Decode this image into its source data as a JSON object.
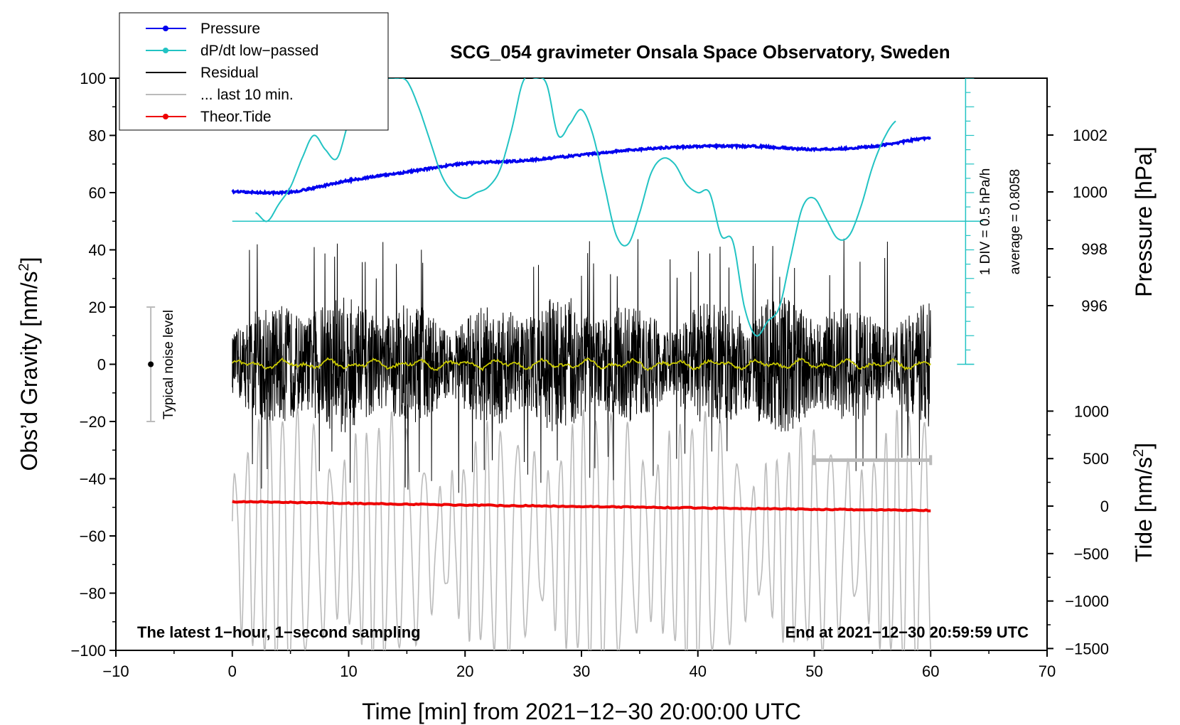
{
  "chart_data": {
    "type": "line",
    "title": "SCG_054 gravimeter Onsala Space Observatory, Sweden",
    "xlabel": "Time [min] from 2021−12−30 20:00:00 UTC",
    "ylabel_left": "Obs’d Gravity [nm/s",
    "ylabel_left_sup": "2",
    "ylabel_left_close": "]",
    "ylabel_pressure": "Pressure [hPa]",
    "ylabel_tide": "Tide [nm/s",
    "ylabel_tide_sup": "2",
    "ylabel_tide_close": "]",
    "xlim": [
      -10,
      70
    ],
    "ylim": [
      -100,
      100
    ],
    "x_ticks": [
      "−10",
      "0",
      "10",
      "20",
      "30",
      "40",
      "50",
      "60",
      "70"
    ],
    "y_ticks": [
      "100",
      "80",
      "60",
      "40",
      "20",
      "0",
      "−20",
      "−40",
      "−60",
      "−80",
      "−100"
    ],
    "pressure_ticks": [
      "1002",
      "1000",
      "998",
      "996"
    ],
    "pressure_tick_values": [
      1002,
      1000,
      998,
      996
    ],
    "tide_ticks": [
      "1000",
      "500",
      "0",
      "−500",
      "−1000",
      "−1500"
    ],
    "tide_tick_values": [
      1000,
      500,
      0,
      -500,
      -1000,
      -1500
    ],
    "note_left": "The latest 1−hour, 1−second sampling",
    "note_right": "End at 2021−12−30 20:59:59 UTC",
    "dpdt_scale_label": "1 DIV = 0.5 hPa/h",
    "dpdt_average_label": "average = 0.8058",
    "noise_label": "Typical noise level",
    "noise_range": [
      -20,
      20
    ],
    "legend": [
      {
        "label": "Pressure",
        "color": "#0000ee",
        "marker": true
      },
      {
        "label": "dP/dt low−passed",
        "color": "#22c3c3",
        "marker": true
      },
      {
        "label": "Residual",
        "color": "#000000",
        "marker": false
      },
      {
        "label": "... last 10 min.",
        "color": "#bbbbbb",
        "marker": false
      },
      {
        "label": "Theor.Tide",
        "color": "#ee0000",
        "marker": true
      }
    ],
    "series": [
      {
        "name": "Pressure",
        "color": "#0000ee",
        "unit": "hPa",
        "x": [
          0,
          5,
          10,
          15,
          20,
          25,
          30,
          35,
          40,
          45,
          50,
          55,
          60
        ],
        "values": [
          1000.0,
          1000.0,
          1000.4,
          1000.7,
          1001.0,
          1001.1,
          1001.3,
          1001.5,
          1001.6,
          1001.6,
          1001.5,
          1001.6,
          1001.9
        ]
      },
      {
        "name": "dP/dt low-passed",
        "color": "#22c3c3",
        "unit": "nm/s2-scaled",
        "x": [
          2,
          3,
          4,
          5,
          6,
          7,
          8,
          9,
          10,
          11,
          12,
          13,
          14,
          15,
          16,
          17,
          18,
          19,
          20,
          21,
          22,
          23,
          24,
          25,
          26,
          27,
          28,
          29,
          30,
          31,
          32,
          33,
          34,
          35,
          36,
          37,
          38,
          39,
          40,
          41,
          42,
          43,
          44,
          45,
          46,
          47,
          48,
          49,
          50,
          51,
          52,
          53,
          54,
          55,
          56,
          57
        ],
        "values": [
          53,
          50,
          56,
          62,
          72,
          80,
          75,
          72,
          85,
          97,
          100,
          100,
          100,
          99,
          90,
          78,
          66,
          60,
          58,
          60,
          62,
          68,
          82,
          99,
          100,
          98,
          80,
          84,
          89,
          80,
          62,
          45,
          42,
          53,
          67,
          72,
          70,
          63,
          60,
          60,
          45,
          43,
          20,
          10,
          15,
          20,
          38,
          55,
          58,
          51,
          44,
          45,
          55,
          69,
          79,
          85
        ]
      },
      {
        "name": "Residual",
        "color": "#000000",
        "unit": "nm/s2",
        "x": [
          0,
          60
        ],
        "amplitude": 20,
        "peak_range": [
          -45,
          47
        ]
      },
      {
        "name": "Residual smoothed",
        "color": "#c8c800",
        "unit": "nm/s2",
        "x": [
          0,
          60
        ],
        "values": [
          0,
          0
        ]
      },
      {
        "name": "... last 10 min.",
        "color": "#bbbbbb",
        "unit": "nm/s2",
        "x": [
          0,
          60
        ],
        "baseline": -62,
        "amplitude_range": [
          -105,
          -35
        ]
      },
      {
        "name": "Theor.Tide",
        "color": "#ee0000",
        "unit": "nm/s2",
        "x": [
          0,
          10,
          20,
          30,
          40,
          50,
          60
        ],
        "values": [
          -48.0,
          -48.6,
          -49.2,
          -49.7,
          -50.2,
          -50.7,
          -51.1
        ]
      }
    ],
    "last10min_bracket_x": [
      50,
      60
    ],
    "last10min_bracket_y": -33.5
  }
}
